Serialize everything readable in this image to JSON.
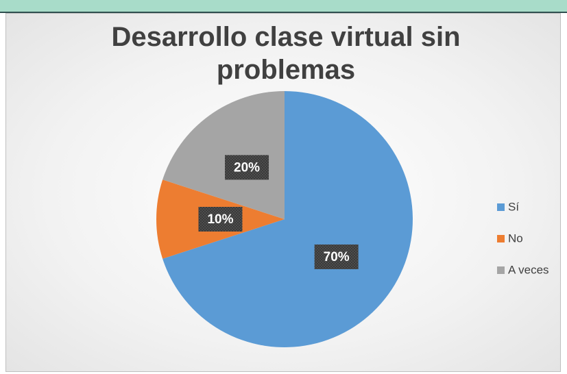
{
  "chart_data": {
    "type": "pie",
    "title": "Desarrollo clase virtual sin problemas",
    "categories": [
      "Sí",
      "No",
      "A veces"
    ],
    "values": [
      70,
      10,
      20
    ],
    "value_labels": [
      "70%",
      "10%",
      "20%"
    ],
    "colors": [
      "#5b9bd5",
      "#ed7d31",
      "#a5a5a5"
    ],
    "legend": "right"
  }
}
